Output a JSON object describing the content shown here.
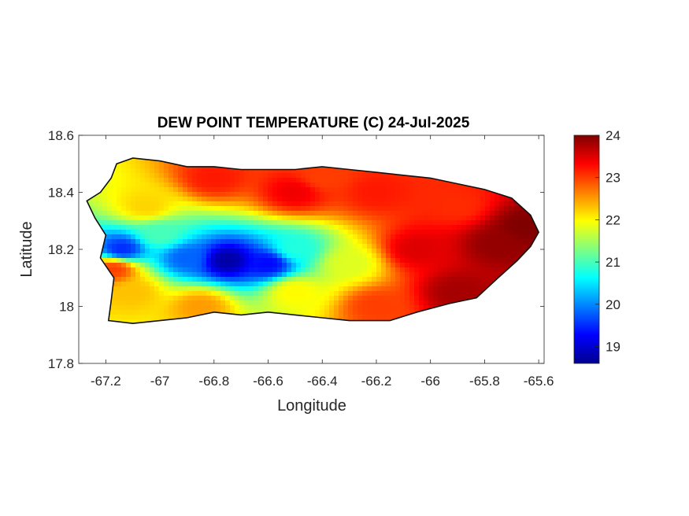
{
  "title": "DEW POINT TEMPERATURE (C) 24-Jul-2025",
  "chart_data": {
    "type": "heatmap",
    "title": "DEW POINT TEMPERATURE (C) 24-Jul-2025",
    "xlabel": "Longitude",
    "ylabel": "Latitude",
    "xlim": [
      -67.3,
      -65.58
    ],
    "ylim": [
      17.8,
      18.6
    ],
    "xticks": [
      -67.2,
      -67,
      -66.8,
      -66.6,
      -66.4,
      -66.2,
      -66,
      -65.8,
      -65.6
    ],
    "xtick_labels": [
      "-67.2",
      "-67",
      "-66.8",
      "-66.6",
      "-66.4",
      "-66.2",
      "-66",
      "-65.8",
      "-65.6"
    ],
    "yticks": [
      18.6,
      18.4,
      18.2,
      18,
      17.8
    ],
    "ytick_labels": [
      "18.6",
      "18.4",
      "18.2",
      "18",
      "17.8"
    ],
    "colorbar": {
      "range": [
        18.6,
        24
      ],
      "ticks": [
        24,
        23,
        22,
        21,
        20,
        19
      ],
      "tick_labels": [
        "24",
        "23",
        "22",
        "21",
        "20",
        "19"
      ],
      "colormap": "jet"
    },
    "region_outline": [
      [
        -67.27,
        18.37
      ],
      [
        -67.22,
        18.4
      ],
      [
        -67.18,
        18.45
      ],
      [
        -67.16,
        18.5
      ],
      [
        -67.1,
        18.52
      ],
      [
        -67.0,
        18.51
      ],
      [
        -66.9,
        18.49
      ],
      [
        -66.8,
        18.49
      ],
      [
        -66.7,
        18.48
      ],
      [
        -66.6,
        18.48
      ],
      [
        -66.5,
        18.48
      ],
      [
        -66.4,
        18.49
      ],
      [
        -66.3,
        18.48
      ],
      [
        -66.2,
        18.47
      ],
      [
        -66.1,
        18.46
      ],
      [
        -66.0,
        18.45
      ],
      [
        -65.9,
        18.43
      ],
      [
        -65.8,
        18.41
      ],
      [
        -65.7,
        18.38
      ],
      [
        -65.63,
        18.32
      ],
      [
        -65.6,
        18.26
      ],
      [
        -65.63,
        18.21
      ],
      [
        -65.68,
        18.16
      ],
      [
        -65.75,
        18.1
      ],
      [
        -65.83,
        18.03
      ],
      [
        -65.93,
        18.01
      ],
      [
        -66.05,
        17.98
      ],
      [
        -66.15,
        17.95
      ],
      [
        -66.3,
        17.95
      ],
      [
        -66.4,
        17.96
      ],
      [
        -66.5,
        17.97
      ],
      [
        -66.6,
        17.98
      ],
      [
        -66.7,
        17.97
      ],
      [
        -66.8,
        17.98
      ],
      [
        -66.9,
        17.96
      ],
      [
        -67.0,
        17.95
      ],
      [
        -67.1,
        17.94
      ],
      [
        -67.19,
        17.95
      ],
      [
        -67.18,
        18.02
      ],
      [
        -67.17,
        18.1
      ],
      [
        -67.22,
        18.17
      ],
      [
        -67.2,
        18.25
      ],
      [
        -67.24,
        18.31
      ],
      [
        -67.27,
        18.37
      ]
    ],
    "field_anchors": [
      {
        "lon": -66.75,
        "lat": 18.16,
        "value": 18.8
      },
      {
        "lon": -66.6,
        "lat": 18.15,
        "value": 19.3
      },
      {
        "lon": -66.9,
        "lat": 18.17,
        "value": 19.8
      },
      {
        "lon": -67.14,
        "lat": 18.2,
        "value": 19.5
      },
      {
        "lon": -66.5,
        "lat": 18.2,
        "value": 20.8
      },
      {
        "lon": -67.0,
        "lat": 18.25,
        "value": 21.0
      },
      {
        "lon": -66.3,
        "lat": 18.15,
        "value": 21.8
      },
      {
        "lon": -67.05,
        "lat": 18.35,
        "value": 22.2
      },
      {
        "lon": -67.1,
        "lat": 18.05,
        "value": 22.3
      },
      {
        "lon": -66.85,
        "lat": 18.0,
        "value": 22.5
      },
      {
        "lon": -66.5,
        "lat": 18.05,
        "value": 22.0
      },
      {
        "lon": -66.8,
        "lat": 18.45,
        "value": 23.2
      },
      {
        "lon": -66.5,
        "lat": 18.4,
        "value": 23.4
      },
      {
        "lon": -66.4,
        "lat": 18.45,
        "value": 23.0
      },
      {
        "lon": -66.2,
        "lat": 18.4,
        "value": 23.2
      },
      {
        "lon": -66.2,
        "lat": 18.0,
        "value": 23.0
      },
      {
        "lon": -66.05,
        "lat": 18.2,
        "value": 23.5
      },
      {
        "lon": -65.9,
        "lat": 18.35,
        "value": 23.1
      },
      {
        "lon": -65.75,
        "lat": 18.22,
        "value": 23.9
      },
      {
        "lon": -65.65,
        "lat": 18.28,
        "value": 24.0
      },
      {
        "lon": -65.9,
        "lat": 18.05,
        "value": 23.8
      },
      {
        "lon": -67.17,
        "lat": 18.13,
        "value": 23.0
      }
    ]
  }
}
